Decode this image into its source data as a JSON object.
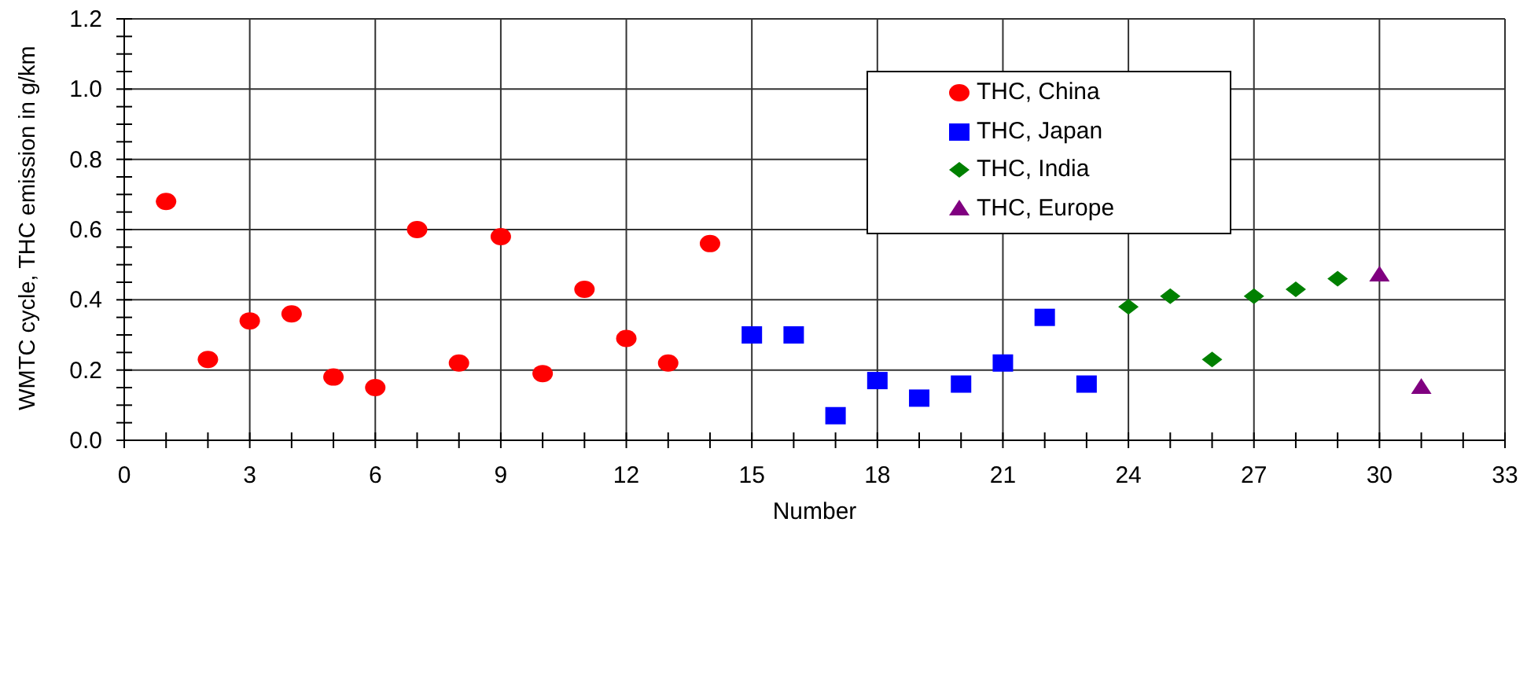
{
  "chart_data": {
    "type": "scatter",
    "xlabel": "Number",
    "ylabel": "WMTC cycle, THC emission in g/km",
    "series": [
      {
        "name": "THC, China",
        "color": "#ff0000",
        "marker": "circle",
        "x": [
          1,
          2,
          3,
          4,
          5,
          6,
          7,
          8,
          9,
          10,
          11,
          12,
          13,
          14
        ],
        "values": [
          0.68,
          0.23,
          0.34,
          0.36,
          0.18,
          0.15,
          0.6,
          0.22,
          0.58,
          0.19,
          0.43,
          0.29,
          0.22,
          0.56
        ]
      },
      {
        "name": "THC, Japan",
        "color": "#0000ff",
        "marker": "square",
        "x": [
          15,
          16,
          17,
          18,
          19,
          20,
          21,
          22,
          23
        ],
        "values": [
          0.3,
          0.3,
          0.07,
          0.17,
          0.12,
          0.16,
          0.22,
          0.35,
          0.16
        ]
      },
      {
        "name": "THC, India",
        "color": "#008000",
        "marker": "diamond",
        "x": [
          24,
          25,
          26,
          27,
          28,
          29
        ],
        "values": [
          0.38,
          0.41,
          0.23,
          0.41,
          0.43,
          0.46
        ]
      },
      {
        "name": "THC, Europe",
        "color": "#800080",
        "marker": "triangle",
        "x": [
          30,
          31
        ],
        "values": [
          0.47,
          0.15
        ]
      }
    ],
    "xlim": [
      0,
      33
    ],
    "xticks": [
      0,
      {
        "value": 1,
        "label": null
      },
      {
        "value": 2,
        "label": null
      },
      3,
      {
        "value": 4,
        "label": null
      },
      {
        "value": 5,
        "label": null
      },
      6,
      {
        "value": 7,
        "label": null
      },
      {
        "value": 8,
        "label": null
      },
      9,
      {
        "value": 10,
        "label": null
      },
      {
        "value": 11,
        "label": null
      },
      12,
      {
        "value": 13,
        "label": null
      },
      {
        "value": 14,
        "label": null
      },
      15,
      {
        "value": 16,
        "label": null
      },
      {
        "value": 17,
        "label": null
      },
      18,
      {
        "value": 19,
        "label": null
      },
      {
        "value": 20,
        "label": null
      },
      21,
      {
        "value": 22,
        "label": null
      },
      {
        "value": 23,
        "label": null
      },
      24,
      {
        "value": 25,
        "label": null
      },
      {
        "value": 26,
        "label": null
      },
      27,
      {
        "value": 28,
        "label": null
      },
      {
        "value": 29,
        "label": null
      },
      30,
      {
        "value": 31,
        "label": null
      },
      {
        "value": 32,
        "label": null
      },
      33
    ],
    "ylim": [
      0,
      1.2
    ],
    "yticks": [
      {
        "value": 0,
        "label": "0.0"
      },
      {
        "value": 0.05,
        "label": null
      },
      {
        "value": 0.1,
        "label": null
      },
      {
        "value": 0.15,
        "label": null
      },
      0.2,
      {
        "value": 0.25,
        "label": null
      },
      {
        "value": 0.3,
        "label": null
      },
      {
        "value": 0.35,
        "label": null
      },
      0.4,
      {
        "value": 0.45,
        "label": null
      },
      {
        "value": 0.5,
        "label": null
      },
      {
        "value": 0.55,
        "label": null
      },
      0.6,
      {
        "value": 0.65,
        "label": null
      },
      {
        "value": 0.7,
        "label": null
      },
      {
        "value": 0.75,
        "label": null
      },
      0.8,
      {
        "value": 0.85,
        "label": null
      },
      {
        "value": 0.9,
        "label": null
      },
      {
        "value": 0.95,
        "label": null
      },
      {
        "value": 1,
        "label": "1.0"
      },
      {
        "value": 1.05,
        "label": null
      },
      {
        "value": 1.1,
        "label": null
      },
      {
        "value": 1.15,
        "label": null
      },
      1.2
    ],
    "grid": true,
    "legend": "top right"
  }
}
